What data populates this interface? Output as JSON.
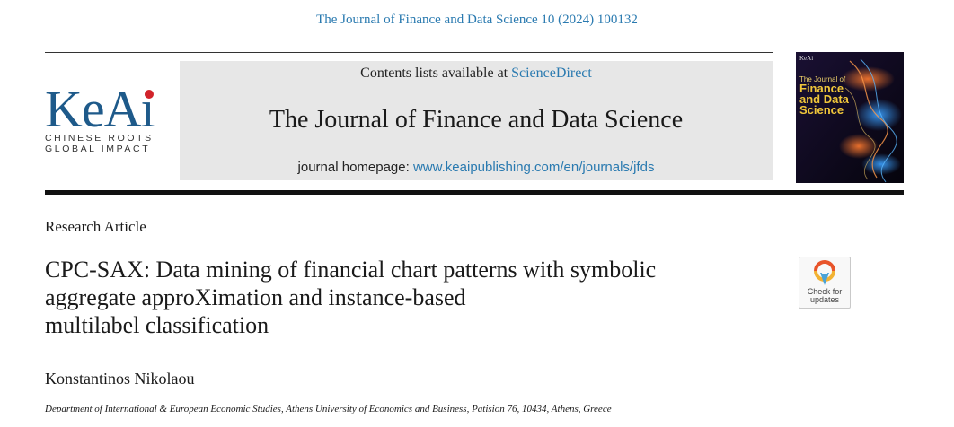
{
  "header": {
    "citation": "The Journal of Finance and Data Science 10 (2024) 100132"
  },
  "publisher_logo": {
    "wordmark": "KeAi",
    "tagline_1": "CHINESE ROOTS",
    "tagline_2": "GLOBAL IMPACT"
  },
  "masthead": {
    "contents_prefix": "Contents lists available at ",
    "contents_link": "ScienceDirect",
    "journal_title": "The Journal of Finance and Data Science",
    "homepage_prefix": "journal homepage: ",
    "homepage_url": "www.keaipublishing.com/en/journals/jfds"
  },
  "cover": {
    "brand": "KeAi",
    "title_small": "The Journal of",
    "title_big": [
      "Finance",
      "and Data",
      "Science"
    ]
  },
  "article": {
    "type": "Research Article",
    "title_lines": [
      "CPC-SAX: Data mining of financial chart patterns with symbolic",
      "aggregate approXimation and instance-based",
      "multilabel classification"
    ],
    "author": "Konstantinos Nikolaou",
    "affiliation": "Department of International & European Economic Studies, Athens University of Economics and Business, Patision 76, 10434, Athens, Greece"
  },
  "badge": {
    "line_1": "Check for",
    "line_2": "updates"
  }
}
